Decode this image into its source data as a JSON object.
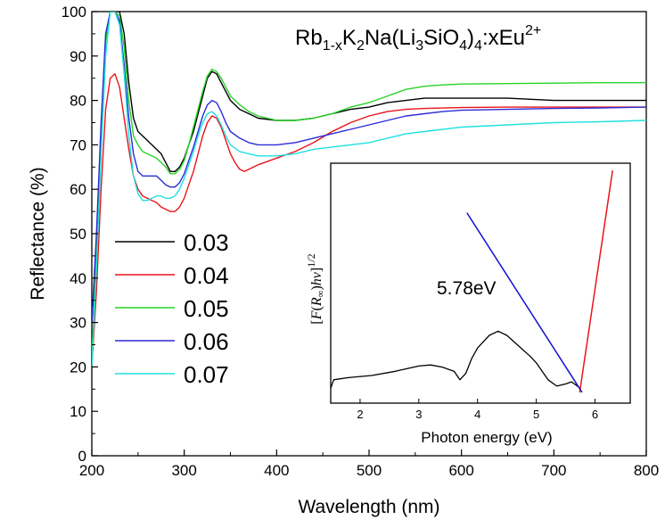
{
  "chart_data": [
    {
      "type": "line",
      "title": "Rb1-xK2Na(Li3SiO4)4:xEu2+",
      "title_parts": {
        "main": "Rb",
        "sub1": "1-x",
        "mid1": "K",
        "sub2": "2",
        "mid2": "Na(Li",
        "sub3": "3",
        "mid3": "SiO",
        "sub4": "4",
        "mid4": ")",
        "sub5": "4",
        "mid5": ":xEu",
        "sup": "2+"
      },
      "xlabel": "Wavelength (nm)",
      "ylabel": "Reflectance (%)",
      "xlim": [
        200,
        800
      ],
      "ylim": [
        0,
        100
      ],
      "xticks": [
        200,
        300,
        400,
        500,
        600,
        700,
        800
      ],
      "yticks": [
        0,
        10,
        20,
        30,
        40,
        50,
        60,
        70,
        80,
        90,
        100
      ],
      "grid": false,
      "legend_position": "left-middle",
      "series": [
        {
          "name": "0.03",
          "color": "#000000",
          "x": [
            200,
            205,
            210,
            215,
            220,
            225,
            230,
            235,
            240,
            245,
            250,
            255,
            260,
            265,
            270,
            275,
            280,
            285,
            290,
            295,
            300,
            305,
            310,
            315,
            320,
            325,
            330,
            335,
            340,
            345,
            350,
            360,
            370,
            380,
            400,
            420,
            440,
            460,
            480,
            500,
            520,
            540,
            560,
            580,
            600,
            650,
            700,
            750,
            800
          ],
          "y": [
            30,
            48,
            72,
            94,
            100,
            100,
            100,
            95,
            84,
            76,
            73,
            72,
            71,
            70,
            69,
            68,
            66,
            64,
            64,
            65,
            67,
            70,
            73,
            77,
            81,
            85,
            86.5,
            86,
            84,
            82,
            80,
            78,
            77,
            76,
            75.5,
            75.5,
            76,
            77,
            78,
            78.5,
            79.5,
            80,
            80.5,
            80.5,
            80.5,
            80.5,
            80,
            80,
            80
          ]
        },
        {
          "name": "0.04",
          "color": "#e8141b",
          "x": [
            200,
            205,
            210,
            215,
            220,
            225,
            230,
            235,
            240,
            245,
            250,
            255,
            260,
            265,
            270,
            275,
            280,
            285,
            290,
            295,
            300,
            305,
            310,
            315,
            320,
            325,
            330,
            335,
            340,
            345,
            350,
            355,
            360,
            365,
            370,
            380,
            400,
            420,
            440,
            460,
            480,
            500,
            520,
            540,
            560,
            580,
            600,
            650,
            700,
            750,
            800
          ],
          "y": [
            20,
            37,
            60,
            78,
            85,
            86,
            83,
            76,
            69,
            63,
            60,
            58.5,
            58,
            57.5,
            57,
            56,
            55.5,
            55,
            55,
            56,
            58,
            61,
            64,
            68,
            72,
            75,
            76.5,
            76,
            74,
            71,
            68,
            66,
            64.5,
            64,
            64.5,
            65.5,
            67,
            68.5,
            70.5,
            73,
            75,
            76.5,
            77.5,
            78,
            78.2,
            78.3,
            78.4,
            78.5,
            78.5,
            78.5,
            78.5
          ]
        },
        {
          "name": "0.05",
          "color": "#27d427",
          "x": [
            200,
            205,
            210,
            215,
            220,
            225,
            230,
            235,
            240,
            245,
            250,
            255,
            260,
            265,
            270,
            275,
            280,
            285,
            290,
            295,
            300,
            305,
            310,
            315,
            320,
            325,
            330,
            335,
            340,
            345,
            350,
            360,
            370,
            380,
            400,
            420,
            440,
            460,
            480,
            500,
            520,
            540,
            560,
            580,
            600,
            650,
            700,
            750,
            800
          ],
          "y": [
            22,
            45,
            70,
            93,
            100,
            100,
            99,
            92,
            80,
            72,
            70,
            68.5,
            68,
            67.5,
            67,
            66,
            65,
            63.5,
            63.5,
            64.5,
            66.5,
            70,
            74,
            78,
            82,
            85.5,
            87,
            86.5,
            85,
            83,
            81,
            79,
            77.5,
            76.5,
            75.5,
            75.5,
            76,
            77,
            78.5,
            79.5,
            81,
            82.5,
            83.2,
            83.5,
            83.7,
            83.8,
            83.9,
            84,
            84
          ]
        },
        {
          "name": "0.06",
          "color": "#2b2bd6",
          "x": [
            200,
            205,
            210,
            215,
            220,
            225,
            230,
            235,
            240,
            245,
            250,
            255,
            260,
            265,
            270,
            275,
            280,
            285,
            290,
            295,
            300,
            305,
            310,
            315,
            320,
            325,
            330,
            335,
            340,
            345,
            350,
            360,
            370,
            380,
            400,
            420,
            440,
            460,
            480,
            500,
            520,
            540,
            560,
            580,
            600,
            650,
            700,
            750,
            800
          ],
          "y": [
            30,
            50,
            75,
            95,
            100,
            100,
            98,
            88,
            76,
            68,
            64,
            63,
            63,
            63,
            63,
            62,
            61,
            60.5,
            60.5,
            61.5,
            63.5,
            66.5,
            69.5,
            73,
            76.5,
            79,
            80,
            79.5,
            77.5,
            75,
            73,
            71.5,
            70.5,
            70,
            70,
            70.5,
            71.5,
            72.5,
            73.5,
            74.5,
            75.5,
            76.5,
            77,
            77.5,
            77.8,
            78,
            78.2,
            78.3,
            78.5
          ]
        },
        {
          "name": "0.07",
          "color": "#22e0e0",
          "x": [
            200,
            205,
            210,
            215,
            220,
            225,
            230,
            235,
            240,
            245,
            250,
            255,
            260,
            265,
            270,
            275,
            280,
            285,
            290,
            295,
            300,
            305,
            310,
            315,
            320,
            325,
            330,
            335,
            340,
            345,
            350,
            360,
            370,
            380,
            400,
            420,
            440,
            460,
            480,
            500,
            520,
            540,
            560,
            580,
            600,
            650,
            700,
            750,
            800
          ],
          "y": [
            20,
            42,
            68,
            90,
            100,
            100,
            97,
            86,
            72,
            63,
            59,
            57.5,
            57.5,
            58,
            58.5,
            58.5,
            58,
            58,
            58.5,
            60,
            62.5,
            65.5,
            68.5,
            72,
            75,
            77,
            77.5,
            76.5,
            74.5,
            72,
            70,
            68.5,
            68,
            67.5,
            67.5,
            68,
            69,
            69.5,
            70,
            70.5,
            71.5,
            72.5,
            73,
            73.5,
            74,
            74.5,
            75,
            75.2,
            75.5
          ]
        }
      ]
    },
    {
      "type": "line",
      "inset": true,
      "xlabel": "Photon energy (eV)",
      "ylabel_parts": {
        "open": "[",
        "F": "F",
        "paren1": "(",
        "R": "R",
        "inf": "∞",
        "paren2": ")",
        "hv": "hν",
        "close": "]",
        "sup": "1/2"
      },
      "xlim": [
        1.5,
        6.6
      ],
      "ylim": [
        0,
        1
      ],
      "xticks": [
        2,
        3,
        4,
        5,
        6
      ],
      "annotation": "5.78eV",
      "series": [
        {
          "name": "",
          "color": "#000000",
          "x": [
            1.5,
            1.55,
            1.8,
            2.2,
            2.6,
            3.0,
            3.2,
            3.4,
            3.6,
            3.7,
            3.8,
            3.9,
            4.0,
            4.2,
            4.35,
            4.5,
            4.7,
            4.9,
            5.0,
            5.2,
            5.35,
            5.5,
            5.6,
            5.7,
            5.75
          ],
          "y": [
            0.02,
            0.06,
            0.07,
            0.08,
            0.1,
            0.125,
            0.13,
            0.12,
            0.1,
            0.06,
            0.09,
            0.16,
            0.21,
            0.27,
            0.29,
            0.27,
            0.22,
            0.17,
            0.14,
            0.06,
            0.03,
            0.04,
            0.05,
            0.03,
            0.02
          ]
        },
        {
          "name": "",
          "color": "#e8141b",
          "x": [
            5.74,
            6.3
          ],
          "y": [
            0.0,
            1.05
          ]
        },
        {
          "name": "",
          "color": "#1010d0",
          "x": [
            3.82,
            5.78
          ],
          "y": [
            0.85,
            0.0
          ]
        }
      ]
    }
  ]
}
